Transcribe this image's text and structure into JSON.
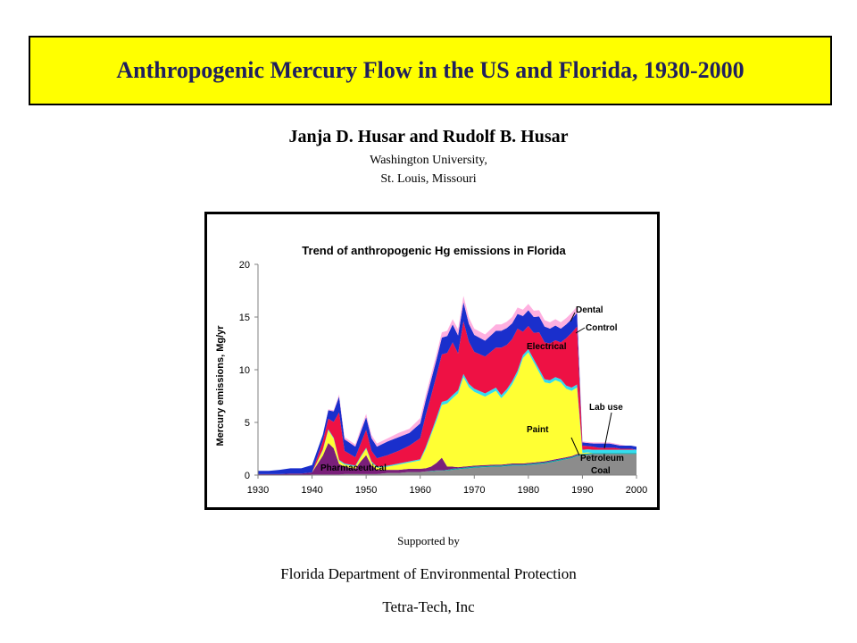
{
  "header": {
    "title": "Anthropogenic Mercury Flow in the US and Florida, 1930-2000",
    "authors": "Janja D. Husar and Rudolf B. Husar",
    "affiliation_line1": "Washington University,",
    "affiliation_line2": "St. Louis, Missouri"
  },
  "footer": {
    "supported_by": "Supported by",
    "sponsor1": "Florida Department of Environmental Protection",
    "sponsor2": "Tetra-Tech, Inc"
  },
  "colors": {
    "title_bg": "#ffff00",
    "title_text": "#1f1f5e"
  },
  "chart_data": {
    "type": "area",
    "title": "Trend of anthropogenic Hg emissions in Florida",
    "xlabel": "",
    "ylabel": "Mercury emissions, Mg/yr",
    "xlim": [
      1930,
      2000
    ],
    "ylim": [
      0,
      20
    ],
    "x_ticks": [
      "1930",
      "1940",
      "1950",
      "1960",
      "1970",
      "1980",
      "1990",
      "2000"
    ],
    "y_ticks": [
      "0",
      "5",
      "10",
      "15",
      "20"
    ],
    "grid": false,
    "legend": "labels on chart",
    "stacked": true,
    "x": [
      1930,
      1932,
      1934,
      1936,
      1938,
      1940,
      1942,
      1943,
      1944,
      1945,
      1946,
      1948,
      1949,
      1950,
      1951,
      1952,
      1954,
      1956,
      1958,
      1960,
      1961,
      1962,
      1963,
      1964,
      1965,
      1966,
      1967,
      1968,
      1969,
      1970,
      1972,
      1974,
      1975,
      1976,
      1977,
      1978,
      1979,
      1980,
      1981,
      1982,
      1983,
      1984,
      1985,
      1986,
      1987,
      1988,
      1989,
      1990,
      1991,
      1992,
      1993,
      1994,
      1995,
      1996,
      1997,
      1998,
      1999,
      2000
    ],
    "series": [
      {
        "name": "Coal",
        "color": "#8c8c8c",
        "values": [
          0,
          0,
          0,
          0,
          0,
          0.05,
          0.05,
          0.05,
          0.05,
          0.05,
          0.1,
          0.1,
          0.1,
          0.1,
          0.1,
          0.1,
          0.2,
          0.2,
          0.3,
          0.3,
          0.35,
          0.35,
          0.4,
          0.4,
          0.45,
          0.5,
          0.55,
          0.6,
          0.65,
          0.7,
          0.75,
          0.8,
          0.8,
          0.85,
          0.9,
          0.9,
          0.9,
          0.95,
          1,
          1.05,
          1.1,
          1.2,
          1.3,
          1.4,
          1.5,
          1.6,
          1.8,
          1.9,
          1.95,
          2,
          2,
          2,
          2,
          2,
          2,
          2,
          2,
          2
        ]
      },
      {
        "name": "Petroleum",
        "color": "#00a0a0",
        "values": [
          0,
          0,
          0,
          0,
          0,
          0,
          0,
          0,
          0,
          0,
          0,
          0,
          0,
          0,
          0,
          0,
          0,
          0,
          0,
          0,
          0,
          0.05,
          0.05,
          0.05,
          0.05,
          0.1,
          0.1,
          0.1,
          0.1,
          0.1,
          0.1,
          0.1,
          0.1,
          0.1,
          0.1,
          0.1,
          0.1,
          0.1,
          0.1,
          0.1,
          0.1,
          0.1,
          0.1,
          0.1,
          0.1,
          0.1,
          0.1,
          0.1,
          0.1,
          0.1,
          0.1,
          0.1,
          0.1,
          0.1,
          0.1,
          0.1,
          0.1,
          0.1
        ]
      },
      {
        "name": "Pharmaceutical",
        "color": "#7a1f7a",
        "values": [
          0.1,
          0.1,
          0.1,
          0.15,
          0.15,
          0.2,
          1.8,
          3,
          2.5,
          1,
          0.7,
          0.5,
          1.2,
          1.8,
          0.8,
          0.4,
          0.3,
          0.3,
          0.3,
          0.3,
          0.3,
          0.4,
          0.7,
          1.2,
          0.3,
          0.2,
          0.1,
          0.1,
          0.1,
          0.1,
          0.1,
          0.1,
          0.1,
          0.1,
          0.1,
          0.1,
          0.1,
          0.1,
          0.1,
          0.1,
          0.1,
          0.1,
          0.1,
          0.1,
          0.1,
          0.1,
          0.1,
          0,
          0,
          0,
          0,
          0,
          0,
          0,
          0,
          0,
          0,
          0
        ]
      },
      {
        "name": "Paint",
        "color": "#ffff33",
        "values": [
          0,
          0,
          0,
          0,
          0,
          0,
          0.5,
          1.2,
          0.9,
          0.3,
          0.2,
          0.2,
          0.4,
          0.6,
          0.3,
          0.2,
          0.3,
          0.5,
          0.6,
          0.8,
          1.8,
          3,
          4,
          5,
          6,
          6.5,
          7,
          8.5,
          7.5,
          7,
          6.5,
          7,
          6.3,
          6.8,
          7.5,
          8.5,
          10,
          10.5,
          9.5,
          8.5,
          7.5,
          7.3,
          7.5,
          7.2,
          6.5,
          6.2,
          6.3,
          0.1,
          0.1,
          0,
          0,
          0,
          0,
          0,
          0,
          0,
          0,
          0
        ]
      },
      {
        "name": "Lab use",
        "color": "#33ddee",
        "values": [
          0,
          0,
          0,
          0,
          0,
          0,
          0.1,
          0.1,
          0.1,
          0.1,
          0.1,
          0.1,
          0.1,
          0.1,
          0.1,
          0.1,
          0.1,
          0.1,
          0.1,
          0.1,
          0.2,
          0.2,
          0.3,
          0.3,
          0.3,
          0.3,
          0.3,
          0.3,
          0.3,
          0.3,
          0.3,
          0.3,
          0.3,
          0.3,
          0.3,
          0.3,
          0.3,
          0.3,
          0.3,
          0.3,
          0.3,
          0.3,
          0.3,
          0.3,
          0.3,
          0.3,
          0.3,
          0.3,
          0.3,
          0.3,
          0.3,
          0.3,
          0.3,
          0.3,
          0.3,
          0.3,
          0.3,
          0.3
        ]
      },
      {
        "name": "Electrical",
        "color": "#ee1144",
        "values": [
          0,
          0,
          0,
          0,
          0,
          0,
          0.8,
          1,
          1.5,
          4.5,
          1.2,
          0.8,
          1.2,
          1.7,
          1,
          0.8,
          1,
          1.2,
          1.5,
          2,
          3,
          3.5,
          4,
          4.5,
          4.5,
          5,
          3.5,
          5,
          4,
          3.5,
          3.5,
          3.8,
          4.5,
          4.2,
          4,
          4,
          2.2,
          2.2,
          2.5,
          3.5,
          3.5,
          3.5,
          3.5,
          3.5,
          4.5,
          5.2,
          5.5,
          0.4,
          0.3,
          0.3,
          0.2,
          0.2,
          0.2,
          0.2,
          0.1,
          0.1,
          0.1,
          0
        ]
      },
      {
        "name": "Control",
        "color": "#1a2fcc",
        "values": [
          0.3,
          0.3,
          0.4,
          0.5,
          0.5,
          0.7,
          0.6,
          0.8,
          1,
          1.5,
          1.1,
          1,
          1.1,
          1.2,
          1.2,
          1.1,
          1.3,
          1.3,
          1.2,
          1.4,
          1.4,
          1.5,
          1.5,
          1.6,
          1.6,
          1.7,
          1.7,
          1.8,
          1.7,
          1.6,
          1.5,
          1.6,
          1.6,
          1.6,
          1.5,
          1.4,
          1.5,
          1.5,
          1.5,
          1.5,
          1.5,
          1.4,
          1.4,
          1.3,
          1.3,
          1.3,
          1.3,
          0.3,
          0.3,
          0.3,
          0.4,
          0.4,
          0.4,
          0.3,
          0.3,
          0.3,
          0.3,
          0.3
        ]
      },
      {
        "name": "Dental",
        "color": "#ffb0e0",
        "values": [
          0,
          0,
          0,
          0,
          0,
          0,
          0,
          0.1,
          0.1,
          0.2,
          0.2,
          0.2,
          0.3,
          0.3,
          0.3,
          0.3,
          0.3,
          0.4,
          0.4,
          0.5,
          0.5,
          0.5,
          0.5,
          0.5,
          0.5,
          0.5,
          0.6,
          0.6,
          0.6,
          0.6,
          0.6,
          0.6,
          0.6,
          0.6,
          0.6,
          0.6,
          0.6,
          0.6,
          0.6,
          0.6,
          0.6,
          0.6,
          0.6,
          0.6,
          0.6,
          0.6,
          0.6,
          0.1,
          0.1,
          0.1,
          0.1,
          0.1,
          0.1,
          0.1,
          0.1,
          0,
          0,
          0
        ]
      }
    ],
    "annotations": [
      "Dental",
      "Control",
      "Electrical",
      "Lab use",
      "Paint",
      "Pharmaceutical",
      "Petroleum",
      "Coal"
    ]
  }
}
